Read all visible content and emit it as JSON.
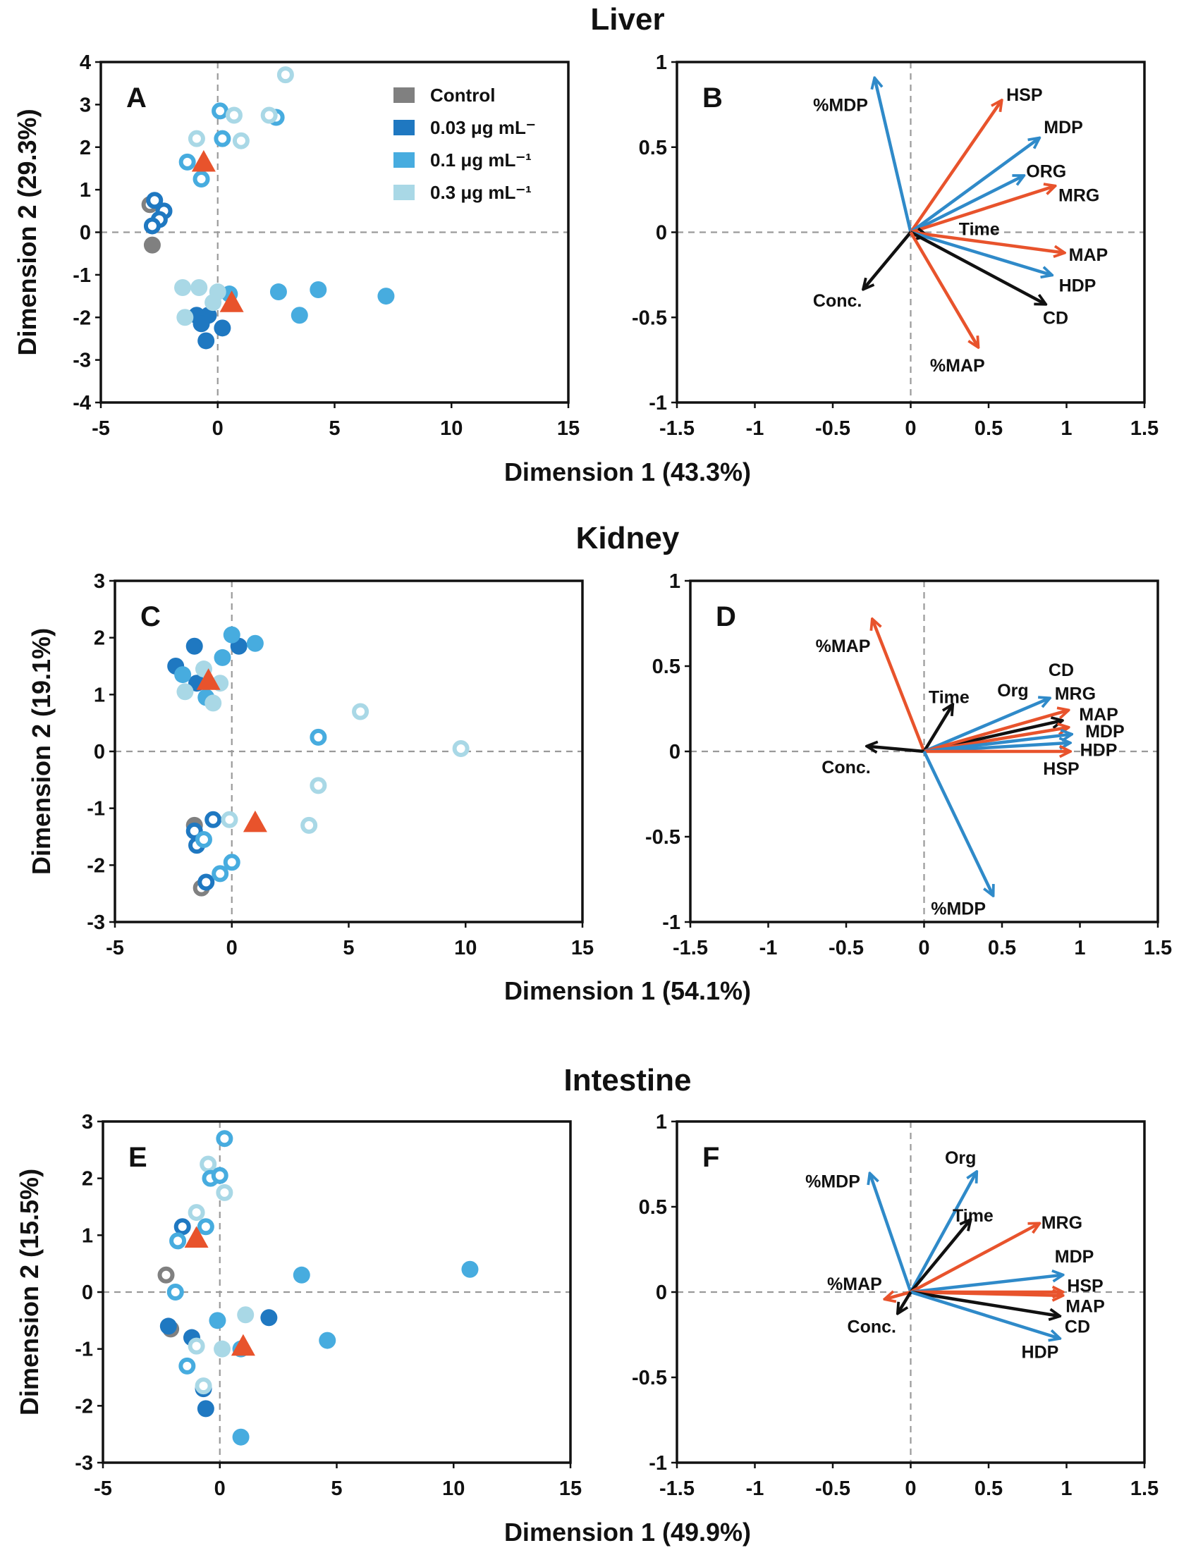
{
  "colors": {
    "control": "#808080",
    "c003": "#1f78c1",
    "c01": "#47acdf",
    "c03": "#a9d8e6",
    "red": "#e8532c",
    "blue": "#2f8ac9",
    "black": "#111111"
  },
  "legend": {
    "control": "Control",
    "c003": "0.03 μg mL⁻",
    "c01": "0.1 μg mL⁻¹",
    "c03": "0.3 μg mL⁻¹"
  },
  "chart_data": [
    {
      "type": "scatter",
      "title": "Liver",
      "panel": "A",
      "xlabel": "",
      "ylabel": "Dimension 2 (29.3%)",
      "xlim": [
        -5,
        15
      ],
      "ylim": [
        -4,
        4
      ],
      "xticks": [
        "-5",
        "0",
        "5",
        "10",
        "15"
      ],
      "yticks": [
        "-4",
        "-3",
        "-2",
        "-1",
        "0",
        "1",
        "2",
        "3",
        "4"
      ],
      "legend": "top-right",
      "points": [
        {
          "x": -2.9,
          "y": 0.65,
          "c": "control",
          "f": false
        },
        {
          "x": -2.8,
          "y": -0.3,
          "c": "control",
          "f": true
        },
        {
          "x": -2.7,
          "y": 0.75,
          "c": "c003",
          "f": false
        },
        {
          "x": -2.3,
          "y": 0.5,
          "c": "c003",
          "f": false
        },
        {
          "x": -2.5,
          "y": 0.3,
          "c": "c003",
          "f": false
        },
        {
          "x": -2.8,
          "y": 0.15,
          "c": "c003",
          "f": false
        },
        {
          "x": -1.3,
          "y": 1.65,
          "c": "c01",
          "f": false
        },
        {
          "x": -0.7,
          "y": 1.25,
          "c": "c01",
          "f": false
        },
        {
          "x": 0.1,
          "y": 2.85,
          "c": "c01",
          "f": false
        },
        {
          "x": 0.2,
          "y": 2.2,
          "c": "c01",
          "f": false
        },
        {
          "x": 2.5,
          "y": 2.7,
          "c": "c01",
          "f": false
        },
        {
          "x": -0.9,
          "y": 2.2,
          "c": "c03",
          "f": false
        },
        {
          "x": 0.7,
          "y": 2.75,
          "c": "c03",
          "f": false
        },
        {
          "x": 1.0,
          "y": 2.15,
          "c": "c03",
          "f": false
        },
        {
          "x": 2.2,
          "y": 2.75,
          "c": "c03",
          "f": false
        },
        {
          "x": 2.9,
          "y": 3.7,
          "c": "c03",
          "f": false
        },
        {
          "x": -0.9,
          "y": -1.95,
          "c": "c003",
          "f": true
        },
        {
          "x": -0.4,
          "y": -1.95,
          "c": "c003",
          "f": true
        },
        {
          "x": -0.7,
          "y": -2.15,
          "c": "c003",
          "f": true
        },
        {
          "x": 0.2,
          "y": -2.25,
          "c": "c003",
          "f": true
        },
        {
          "x": -0.5,
          "y": -2.55,
          "c": "c003",
          "f": true
        },
        {
          "x": 0.5,
          "y": -1.45,
          "c": "c01",
          "f": true
        },
        {
          "x": 2.6,
          "y": -1.4,
          "c": "c01",
          "f": true
        },
        {
          "x": 4.3,
          "y": -1.35,
          "c": "c01",
          "f": true
        },
        {
          "x": 3.5,
          "y": -1.95,
          "c": "c01",
          "f": true
        },
        {
          "x": 7.2,
          "y": -1.5,
          "c": "c01",
          "f": true
        },
        {
          "x": -1.5,
          "y": -1.3,
          "c": "c03",
          "f": true
        },
        {
          "x": -0.8,
          "y": -1.3,
          "c": "c03",
          "f": true
        },
        {
          "x": -1.4,
          "y": -2.0,
          "c": "c03",
          "f": true
        },
        {
          "x": 0.0,
          "y": -1.4,
          "c": "c03",
          "f": true
        },
        {
          "x": -0.2,
          "y": -1.65,
          "c": "c03",
          "f": true
        }
      ],
      "centroids": [
        {
          "x": -0.6,
          "y": 1.65
        },
        {
          "x": 0.6,
          "y": -1.65
        }
      ]
    },
    {
      "type": "biplot",
      "panel": "B",
      "xlabel": "Dimension 1 (43.3%)",
      "xlim": [
        -1.5,
        1.5
      ],
      "ylim": [
        -1,
        1
      ],
      "xticks": [
        "-1.5",
        "-1",
        "-0.5",
        "0",
        "0.5",
        "1",
        "1.5"
      ],
      "yticks": [
        "-1",
        "-0.5",
        "0",
        "0.5",
        "1"
      ],
      "vectors": [
        {
          "name": "%MDP",
          "x": -0.23,
          "y": 0.9,
          "c": "blue",
          "lx": -0.45,
          "ly": 0.75
        },
        {
          "name": "HSP",
          "x": 0.58,
          "y": 0.77,
          "c": "red",
          "lx": 0.73,
          "ly": 0.81
        },
        {
          "name": "MDP",
          "x": 0.82,
          "y": 0.55,
          "c": "blue",
          "lx": 0.98,
          "ly": 0.62
        },
        {
          "name": "ORG",
          "x": 0.72,
          "y": 0.33,
          "c": "blue",
          "lx": 0.87,
          "ly": 0.36
        },
        {
          "name": "MRG",
          "x": 0.92,
          "y": 0.27,
          "c": "red",
          "lx": 1.08,
          "ly": 0.22
        },
        {
          "name": "Time",
          "x": 0.1,
          "y": -0.02,
          "c": "black",
          "lx": 0.44,
          "ly": 0.02
        },
        {
          "name": "MAP",
          "x": 0.98,
          "y": -0.12,
          "c": "red",
          "lx": 1.14,
          "ly": -0.13
        },
        {
          "name": "HDP",
          "x": 0.9,
          "y": -0.25,
          "c": "blue",
          "lx": 1.07,
          "ly": -0.31
        },
        {
          "name": "CD",
          "x": 0.86,
          "y": -0.42,
          "c": "black",
          "lx": 0.93,
          "ly": -0.5
        },
        {
          "name": "Conc.",
          "x": -0.3,
          "y": -0.33,
          "c": "black",
          "lx": -0.47,
          "ly": -0.4
        },
        {
          "name": "%MAP",
          "x": 0.43,
          "y": -0.67,
          "c": "red",
          "lx": 0.3,
          "ly": -0.78
        }
      ]
    },
    {
      "type": "scatter",
      "title": "Kidney",
      "panel": "C",
      "xlabel": "",
      "ylabel": "Dimension 2 (19.1%)",
      "xlim": [
        -5,
        15
      ],
      "ylim": [
        -3,
        3
      ],
      "xticks": [
        "-5",
        "0",
        "5",
        "10",
        "15"
      ],
      "yticks": [
        "-3",
        "-2",
        "-1",
        "0",
        "1",
        "2",
        "3"
      ],
      "points": [
        {
          "x": -1.6,
          "y": 1.85,
          "c": "c003",
          "f": true
        },
        {
          "x": -2.4,
          "y": 1.5,
          "c": "c003",
          "f": true
        },
        {
          "x": -1.5,
          "y": 1.2,
          "c": "c003",
          "f": true
        },
        {
          "x": 0.3,
          "y": 1.85,
          "c": "c003",
          "f": true
        },
        {
          "x": 0.0,
          "y": 2.05,
          "c": "c01",
          "f": true
        },
        {
          "x": 1.0,
          "y": 1.9,
          "c": "c01",
          "f": true
        },
        {
          "x": -2.1,
          "y": 1.35,
          "c": "c01",
          "f": true
        },
        {
          "x": -0.4,
          "y": 1.65,
          "c": "c01",
          "f": true
        },
        {
          "x": -1.1,
          "y": 0.95,
          "c": "c01",
          "f": true
        },
        {
          "x": -2.0,
          "y": 1.05,
          "c": "c03",
          "f": true
        },
        {
          "x": -0.8,
          "y": 0.85,
          "c": "c03",
          "f": true
        },
        {
          "x": -1.2,
          "y": 1.45,
          "c": "c03",
          "f": true
        },
        {
          "x": -0.5,
          "y": 1.2,
          "c": "c03",
          "f": true
        },
        {
          "x": 3.7,
          "y": 0.25,
          "c": "c01",
          "f": false
        },
        {
          "x": 5.5,
          "y": 0.7,
          "c": "c03",
          "f": false
        },
        {
          "x": 9.8,
          "y": 0.05,
          "c": "c03",
          "f": false
        },
        {
          "x": 3.7,
          "y": -0.6,
          "c": "c03",
          "f": false
        },
        {
          "x": 3.3,
          "y": -1.3,
          "c": "c03",
          "f": false
        },
        {
          "x": -1.6,
          "y": -1.3,
          "c": "control",
          "f": true
        },
        {
          "x": -1.3,
          "y": -2.4,
          "c": "control",
          "f": false
        },
        {
          "x": -1.6,
          "y": -1.4,
          "c": "c003",
          "f": false
        },
        {
          "x": -0.8,
          "y": -1.2,
          "c": "c003",
          "f": false
        },
        {
          "x": -1.5,
          "y": -1.65,
          "c": "c003",
          "f": false
        },
        {
          "x": -1.1,
          "y": -2.3,
          "c": "c003",
          "f": false
        },
        {
          "x": -1.2,
          "y": -1.55,
          "c": "c01",
          "f": false
        },
        {
          "x": -0.5,
          "y": -2.15,
          "c": "c01",
          "f": false
        },
        {
          "x": 0.0,
          "y": -1.95,
          "c": "c01",
          "f": false
        },
        {
          "x": -0.1,
          "y": -1.2,
          "c": "c03",
          "f": false
        }
      ],
      "centroids": [
        {
          "x": -1.0,
          "y": 1.25
        },
        {
          "x": 1.0,
          "y": -1.25
        }
      ]
    },
    {
      "type": "biplot",
      "panel": "D",
      "xlabel": "Dimension 1 (54.1%)",
      "xlim": [
        -1.5,
        1.5
      ],
      "ylim": [
        -1,
        1
      ],
      "xticks": [
        "-1.5",
        "-1",
        "-0.5",
        "0",
        "0.5",
        "1",
        "1.5"
      ],
      "yticks": [
        "-1",
        "-0.5",
        "0",
        "0.5",
        "1"
      ],
      "vectors": [
        {
          "name": "%MAP",
          "x": -0.33,
          "y": 0.77,
          "c": "red",
          "lx": -0.52,
          "ly": 0.62
        },
        {
          "name": "Time",
          "x": 0.18,
          "y": 0.27,
          "c": "black",
          "lx": 0.16,
          "ly": 0.32
        },
        {
          "name": "Org",
          "x": 0.8,
          "y": 0.31,
          "c": "blue",
          "lx": 0.57,
          "ly": 0.36
        },
        {
          "name": "CD",
          "x": 0.88,
          "y": 0.18,
          "c": "black",
          "lx": 0.88,
          "ly": 0.48
        },
        {
          "name": "MRG",
          "x": 0.92,
          "y": 0.24,
          "c": "red",
          "lx": 0.97,
          "ly": 0.34
        },
        {
          "name": "MAP",
          "x": 0.92,
          "y": 0.14,
          "c": "red",
          "lx": 1.12,
          "ly": 0.22
        },
        {
          "name": "MDP",
          "x": 0.94,
          "y": 0.1,
          "c": "blue",
          "lx": 1.16,
          "ly": 0.12
        },
        {
          "name": "HDP",
          "x": 0.93,
          "y": 0.05,
          "c": "blue",
          "lx": 1.12,
          "ly": 0.01
        },
        {
          "name": "HSP",
          "x": 0.93,
          "y": 0.0,
          "c": "red",
          "lx": 0.88,
          "ly": -0.1
        },
        {
          "name": "Conc.",
          "x": -0.36,
          "y": 0.03,
          "c": "black",
          "lx": -0.5,
          "ly": -0.09
        },
        {
          "name": "%MDP",
          "x": 0.44,
          "y": -0.84,
          "c": "blue",
          "lx": 0.22,
          "ly": -0.92
        }
      ]
    },
    {
      "type": "scatter",
      "title": "Intestine",
      "panel": "E",
      "xlabel": "",
      "ylabel": "Dimension 2 (15.5%)",
      "xlim": [
        -5,
        15
      ],
      "ylim": [
        -3,
        3
      ],
      "xticks": [
        "-5",
        "0",
        "5",
        "10",
        "15"
      ],
      "yticks": [
        "-3",
        "-2",
        "-1",
        "0",
        "1",
        "2",
        "3"
      ],
      "points": [
        {
          "x": 0.2,
          "y": 2.7,
          "c": "c01",
          "f": false
        },
        {
          "x": -0.5,
          "y": 2.25,
          "c": "c03",
          "f": false
        },
        {
          "x": -0.4,
          "y": 2.0,
          "c": "c01",
          "f": false
        },
        {
          "x": 0.0,
          "y": 2.05,
          "c": "c01",
          "f": false
        },
        {
          "x": 0.2,
          "y": 1.75,
          "c": "c03",
          "f": false
        },
        {
          "x": -1.0,
          "y": 1.4,
          "c": "c03",
          "f": false
        },
        {
          "x": -1.6,
          "y": 1.15,
          "c": "c003",
          "f": false
        },
        {
          "x": -1.8,
          "y": 0.9,
          "c": "c01",
          "f": false
        },
        {
          "x": -0.6,
          "y": 1.15,
          "c": "c01",
          "f": false
        },
        {
          "x": -2.3,
          "y": 0.3,
          "c": "control",
          "f": false
        },
        {
          "x": -1.9,
          "y": 0.0,
          "c": "c01",
          "f": false
        },
        {
          "x": -2.1,
          "y": -0.65,
          "c": "control",
          "f": true
        },
        {
          "x": -2.2,
          "y": -0.6,
          "c": "c003",
          "f": true
        },
        {
          "x": -1.2,
          "y": -0.8,
          "c": "c003",
          "f": true
        },
        {
          "x": -1.0,
          "y": -0.95,
          "c": "c03",
          "f": false
        },
        {
          "x": -1.4,
          "y": -1.3,
          "c": "c01",
          "f": false
        },
        {
          "x": -0.7,
          "y": -1.7,
          "c": "c003",
          "f": true
        },
        {
          "x": -0.6,
          "y": -2.05,
          "c": "c003",
          "f": true
        },
        {
          "x": -0.7,
          "y": -1.65,
          "c": "c03",
          "f": false
        },
        {
          "x": -0.1,
          "y": -0.5,
          "c": "c01",
          "f": true
        },
        {
          "x": 2.1,
          "y": -0.45,
          "c": "c003",
          "f": true
        },
        {
          "x": 1.1,
          "y": -0.4,
          "c": "c03",
          "f": true
        },
        {
          "x": 0.1,
          "y": -1.0,
          "c": "c03",
          "f": true
        },
        {
          "x": 0.9,
          "y": -1.0,
          "c": "c01",
          "f": true
        },
        {
          "x": 3.5,
          "y": 0.3,
          "c": "c01",
          "f": true
        },
        {
          "x": 4.6,
          "y": -0.85,
          "c": "c01",
          "f": true
        },
        {
          "x": 10.7,
          "y": 0.4,
          "c": "c01",
          "f": true
        },
        {
          "x": 0.9,
          "y": -2.55,
          "c": "c01",
          "f": true
        }
      ],
      "centroids": [
        {
          "x": -1.0,
          "y": 0.95
        },
        {
          "x": 1.0,
          "y": -0.95
        }
      ]
    },
    {
      "type": "biplot",
      "panel": "F",
      "xlabel": "Dimension 1 (49.9%)",
      "xlim": [
        -1.5,
        1.5
      ],
      "ylim": [
        -1,
        1
      ],
      "xticks": [
        "-1.5",
        "-1",
        "-0.5",
        "0",
        "0.5",
        "1",
        "1.5"
      ],
      "yticks": [
        "-1",
        "-0.5",
        "0",
        "0.5",
        "1"
      ],
      "vectors": [
        {
          "name": "%MDP",
          "x": -0.26,
          "y": 0.69,
          "c": "blue",
          "lx": -0.5,
          "ly": 0.65
        },
        {
          "name": "Org",
          "x": 0.42,
          "y": 0.7,
          "c": "blue",
          "lx": 0.32,
          "ly": 0.79
        },
        {
          "name": "Time",
          "x": 0.38,
          "y": 0.42,
          "c": "black",
          "lx": 0.4,
          "ly": 0.45
        },
        {
          "name": "MRG",
          "x": 0.82,
          "y": 0.4,
          "c": "red",
          "lx": 0.97,
          "ly": 0.41
        },
        {
          "name": "MDP",
          "x": 0.97,
          "y": 0.1,
          "c": "blue",
          "lx": 1.05,
          "ly": 0.21
        },
        {
          "name": "HSP",
          "x": 0.97,
          "y": 0.0,
          "c": "red",
          "lx": 1.12,
          "ly": 0.04
        },
        {
          "name": "MAP",
          "x": 0.97,
          "y": -0.02,
          "c": "red",
          "lx": 1.12,
          "ly": -0.08
        },
        {
          "name": "CD",
          "x": 0.95,
          "y": -0.14,
          "c": "black",
          "lx": 1.07,
          "ly": -0.2
        },
        {
          "name": "HDP",
          "x": 0.95,
          "y": -0.27,
          "c": "blue",
          "lx": 0.83,
          "ly": -0.35
        },
        {
          "name": "%MAP",
          "x": -0.16,
          "y": -0.04,
          "c": "red",
          "lx": -0.36,
          "ly": 0.05
        },
        {
          "name": "Conc.",
          "x": -0.08,
          "y": -0.12,
          "c": "black",
          "lx": -0.25,
          "ly": -0.2
        }
      ]
    }
  ]
}
